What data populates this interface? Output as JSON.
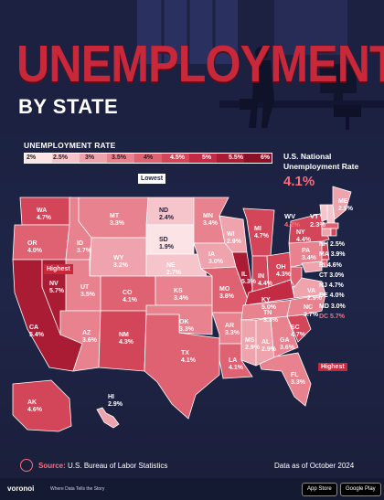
{
  "header": {
    "title": "UNEMPLOYMENT",
    "subtitle": "BY STATE"
  },
  "legend": {
    "title": "UNEMPLOYMENT RATE",
    "ticks": [
      "2%",
      "2.5%",
      "3%",
      "3.5%",
      "4%",
      "4.5%",
      "5%",
      "5.5%",
      "6%"
    ],
    "colors": [
      "#fbe3e6",
      "#f6c4cb",
      "#efa3ad",
      "#e8828f",
      "#df6272",
      "#d34559",
      "#c22b43",
      "#a91c33",
      "#8a1226"
    ]
  },
  "national": {
    "label_line1": "U.S. National",
    "label_line2": "Unemployment Rate",
    "value": "4.1%"
  },
  "tags": {
    "lowest": "Lowest",
    "highest_west": "Highest",
    "highest_east": "Highest"
  },
  "states": {
    "WA": {
      "abbr": "WA",
      "value": "4.7%"
    },
    "OR": {
      "abbr": "OR",
      "value": "4.0%"
    },
    "CA": {
      "abbr": "CA",
      "value": "5.4%"
    },
    "NV": {
      "abbr": "NV",
      "value": "5.7%"
    },
    "ID": {
      "abbr": "ID",
      "value": "3.7%"
    },
    "MT": {
      "abbr": "MT",
      "value": "3.3%"
    },
    "WY": {
      "abbr": "WY",
      "value": "3.2%"
    },
    "UT": {
      "abbr": "UT",
      "value": "3.5%"
    },
    "AZ": {
      "abbr": "AZ",
      "value": "3.6%"
    },
    "CO": {
      "abbr": "CO",
      "value": "4.1%"
    },
    "NM": {
      "abbr": "NM",
      "value": "4.3%"
    },
    "ND": {
      "abbr": "ND",
      "value": "2.4%"
    },
    "SD": {
      "abbr": "SD",
      "value": "1.9%"
    },
    "NE": {
      "abbr": "NE",
      "value": "2.7%"
    },
    "KS": {
      "abbr": "KS",
      "value": "3.4%"
    },
    "OK": {
      "abbr": "OK",
      "value": "3.3%"
    },
    "TX": {
      "abbr": "TX",
      "value": "4.1%"
    },
    "MN": {
      "abbr": "MN",
      "value": "3.4%"
    },
    "IA": {
      "abbr": "IA",
      "value": "3.0%"
    },
    "MO": {
      "abbr": "MO",
      "value": "3.8%"
    },
    "AR": {
      "abbr": "AR",
      "value": "3.3%"
    },
    "LA": {
      "abbr": "LA",
      "value": "4.1%"
    },
    "WI": {
      "abbr": "WI",
      "value": "2.9%"
    },
    "IL": {
      "abbr": "IL",
      "value": "5.3%"
    },
    "MI": {
      "abbr": "MI",
      "value": "4.7%"
    },
    "IN": {
      "abbr": "IN",
      "value": "4.4%"
    },
    "OH": {
      "abbr": "OH",
      "value": "4.3%"
    },
    "KY": {
      "abbr": "KY",
      "value": "5.0%"
    },
    "TN": {
      "abbr": "TN",
      "value": "3.3%"
    },
    "MS": {
      "abbr": "MS",
      "value": "2.9%"
    },
    "AL": {
      "abbr": "AL",
      "value": "2.9%"
    },
    "GA": {
      "abbr": "GA",
      "value": "3.6%"
    },
    "FL": {
      "abbr": "FL",
      "value": "3.3%"
    },
    "SC": {
      "abbr": "SC",
      "value": "4.7%"
    },
    "NC": {
      "abbr": "NC",
      "value": "3.7%"
    },
    "VA": {
      "abbr": "VA",
      "value": "2.9%"
    },
    "WV": {
      "abbr": "WV",
      "value": "4.2%"
    },
    "PA": {
      "abbr": "PA",
      "value": "3.4%"
    },
    "NY": {
      "abbr": "NY",
      "value": "4.4%"
    },
    "VT": {
      "abbr": "VT",
      "value": "2.3%"
    },
    "ME": {
      "abbr": "ME",
      "value": "2.9%"
    },
    "AK": {
      "abbr": "AK",
      "value": "4.6%"
    },
    "HI": {
      "abbr": "HI",
      "value": "2.9%"
    }
  },
  "northeast": [
    {
      "abbr": "NH",
      "value": "2.5%"
    },
    {
      "abbr": "MA",
      "value": "3.9%"
    },
    {
      "abbr": "RI",
      "value": "4.6%"
    },
    {
      "abbr": "CT",
      "value": "3.0%"
    },
    {
      "abbr": "NJ",
      "value": "4.7%"
    },
    {
      "abbr": "DE",
      "value": "4.0%"
    },
    {
      "abbr": "MD",
      "value": "3.0%"
    },
    {
      "abbr": "DC",
      "value": "5.7%"
    }
  ],
  "footer": {
    "source_label": "Source:",
    "source_text": "U.S. Bureau of Labor Statistics",
    "as_of": "Data as of October 2024",
    "brand": "voronoi",
    "brand_tagline": "Where Data Tells the Story",
    "app_store": "App Store",
    "google_play": "Google Play"
  }
}
